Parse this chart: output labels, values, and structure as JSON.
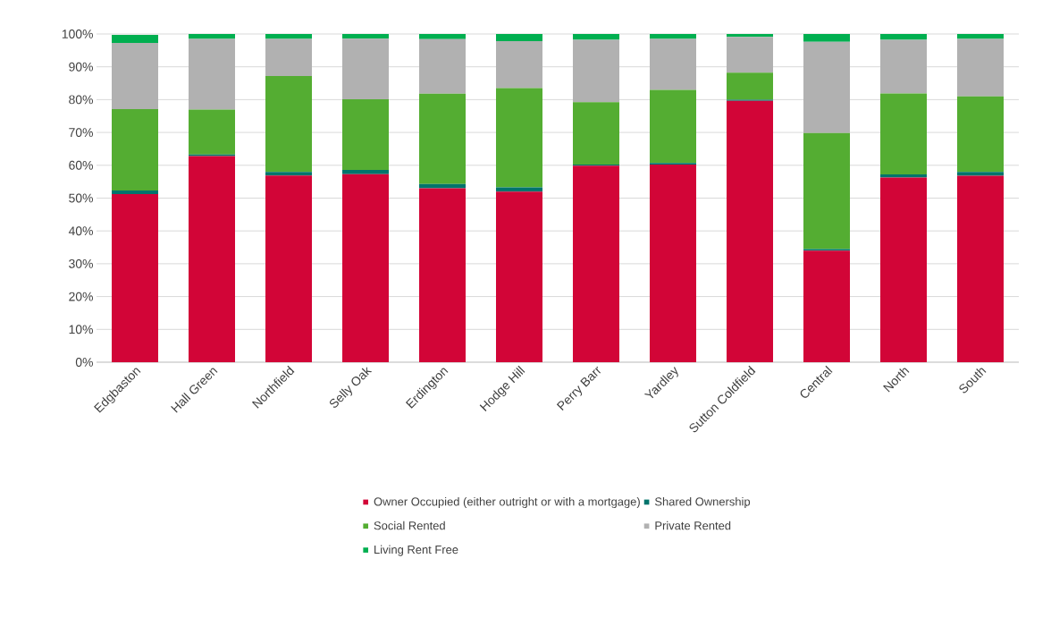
{
  "chart_data": {
    "type": "bar",
    "stacked": true,
    "categories": [
      "Edgbaston",
      "Hall Green",
      "Northfield",
      "Selly Oak",
      "Erdington",
      "Hodge Hill",
      "Perry Barr",
      "Yardley",
      "Sutton Coldfield",
      "Central",
      "North",
      "South"
    ],
    "series": [
      {
        "name": "Owner Occupied (either outright or with a mortgage)",
        "color": "#d20537",
        "values": [
          51.2,
          62.8,
          56.9,
          57.3,
          53.0,
          52.0,
          59.9,
          60.2,
          79.6,
          34.0,
          56.3,
          56.8
        ]
      },
      {
        "name": "Shared Ownership",
        "color": "#00746c",
        "values": [
          1.1,
          0.5,
          1.1,
          1.3,
          1.3,
          1.3,
          0.3,
          0.5,
          0.4,
          0.5,
          0.9,
          1.2
        ]
      },
      {
        "name": "Social Rented",
        "color": "#54ad32",
        "values": [
          24.8,
          13.7,
          29.2,
          21.5,
          27.5,
          30.2,
          19.0,
          22.3,
          8.2,
          35.3,
          24.7,
          23.0
        ]
      },
      {
        "name": "Private Rented",
        "color": "#b1b1b1",
        "values": [
          20.2,
          21.5,
          11.3,
          18.5,
          16.6,
          14.3,
          19.0,
          15.5,
          10.9,
          27.8,
          16.3,
          17.5
        ]
      },
      {
        "name": "Living Rent Free",
        "color": "#00af50",
        "values": [
          2.4,
          1.5,
          1.5,
          1.4,
          1.6,
          2.2,
          1.8,
          1.5,
          0.9,
          2.4,
          1.8,
          1.5
        ]
      }
    ],
    "ylim": [
      0,
      100
    ],
    "yticks": [
      {
        "value": 0,
        "label": "0%"
      },
      {
        "value": 10,
        "label": "10%"
      },
      {
        "value": 20,
        "label": "20%"
      },
      {
        "value": 30,
        "label": "30%"
      },
      {
        "value": 40,
        "label": "40%"
      },
      {
        "value": 50,
        "label": "50%"
      },
      {
        "value": 60,
        "label": "60%"
      },
      {
        "value": 70,
        "label": "70%"
      },
      {
        "value": 80,
        "label": "80%"
      },
      {
        "value": 90,
        "label": "90%"
      },
      {
        "value": 100,
        "label": "100%"
      }
    ],
    "grid": "y",
    "legend": "bottom"
  }
}
